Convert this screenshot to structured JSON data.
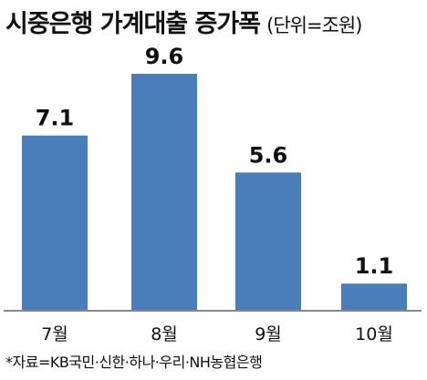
{
  "chart_data": {
    "type": "bar",
    "title": "시중은행 가계대출 증가폭",
    "unit": "(단위=조원)",
    "categories": [
      "7월",
      "8월",
      "9월",
      "10월"
    ],
    "values": [
      7.1,
      9.6,
      5.6,
      1.1
    ],
    "value_labels": [
      "7.1",
      "9.6",
      "5.6",
      "1.1"
    ],
    "xlabel": "",
    "ylabel": "",
    "ylim": [
      0,
      9.6
    ],
    "grid": false,
    "bar_color": "#4a7ebb",
    "axis_color": "#888888"
  },
  "source": "*자료=KB국민·신한·하나·우리·NH농협은행"
}
